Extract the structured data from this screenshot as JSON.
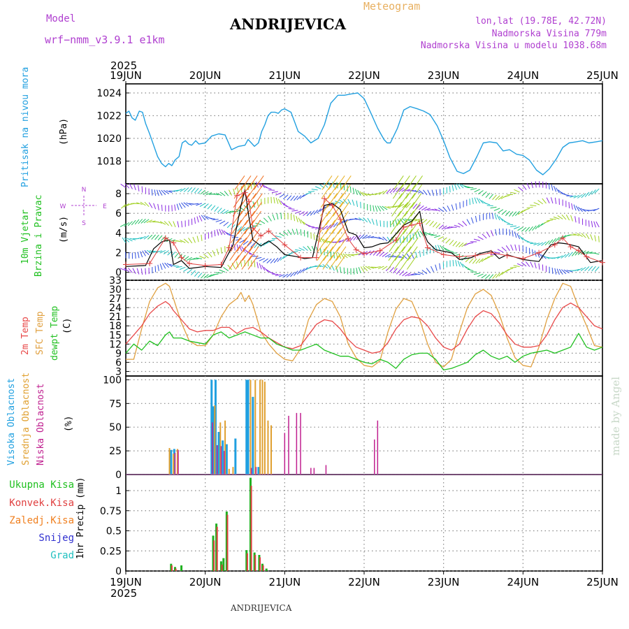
{
  "header": {
    "model_label": "Model",
    "model_name": "wrf−nmm_v3.9.1  e1km",
    "meteogram": "Meteogram",
    "station": "ANDRIJEVICA",
    "lonlat": "lon,lat (19.78E, 42.72N)",
    "altitude": "Nadmorska Visina 779m",
    "model_altitude": "Nadmorska Visina u modelu 1038.68m"
  },
  "footer": {
    "station": "ANDRIJEVICA",
    "credit": "made by Angel"
  },
  "colors": {
    "pressure": "#22a0e0",
    "wind_speed": "#000000",
    "gust": "#e04040",
    "temp2m": "#e84848",
    "sfc_temp": "#e0a040",
    "dewpt": "#20c020",
    "cloud_high": "#20a0e0",
    "cloud_mid": "#e0a030",
    "cloud_low": "#c02090",
    "rain_total": "#20b020",
    "rain_conv": "#e04040",
    "rain_frozen": "#f08020",
    "snow": "#3030d0",
    "hail": "#20c0c0"
  },
  "chart_data": [
    {
      "type": "line",
      "panel": "pressure",
      "ylabel_left": "Pritisak na nivou mora",
      "ylabel_right": "(hPa)",
      "year_label": "2025",
      "x_ticks": [
        "19JUN",
        "20JUN",
        "21JUN",
        "22JUN",
        "23JUN",
        "24JUN",
        "25JUN"
      ],
      "yticks": [
        1018,
        1020,
        1022,
        1024
      ],
      "ylim": [
        1016,
        1024.8
      ],
      "xlim": [
        0,
        6
      ],
      "grid": true,
      "series": [
        {
          "x": [
            0,
            0.04,
            0.08,
            0.12,
            0.17,
            0.21,
            0.25,
            0.3,
            0.35,
            0.4,
            0.45,
            0.5,
            0.54,
            0.58,
            0.62,
            0.67,
            0.71,
            0.75,
            0.79,
            0.83,
            0.88,
            0.92,
            1.0,
            1.08,
            1.17,
            1.25,
            1.33,
            1.42,
            1.5,
            1.54,
            1.58,
            1.62,
            1.67,
            1.71,
            1.75,
            1.79,
            1.83,
            1.88,
            1.92,
            1.96,
            2.0,
            2.08,
            2.17,
            2.25,
            2.33,
            2.42,
            2.5,
            2.58,
            2.67,
            2.75,
            2.83,
            2.92,
            3.0,
            3.08,
            3.17,
            3.25,
            3.29,
            3.33,
            3.42,
            3.5,
            3.58,
            3.67,
            3.75,
            3.83,
            3.92,
            4.0,
            4.08,
            4.17,
            4.25,
            4.33,
            4.42,
            4.5,
            4.58,
            4.67,
            4.75,
            4.83,
            4.92,
            5.0,
            5.08,
            5.17,
            5.25,
            5.33,
            5.42,
            5.5,
            5.58,
            5.67,
            5.75,
            5.83,
            5.92,
            6.0
          ],
          "values": [
            1022.2,
            1022.4,
            1021.8,
            1021.6,
            1022.4,
            1022.3,
            1021.3,
            1020.4,
            1019.4,
            1018.4,
            1017.8,
            1017.5,
            1017.8,
            1017.6,
            1018.1,
            1018.4,
            1019.6,
            1019.8,
            1019.5,
            1019.4,
            1019.8,
            1019.5,
            1019.6,
            1020.2,
            1020.4,
            1020.3,
            1019.0,
            1019.3,
            1019.4,
            1019.9,
            1019.6,
            1019.3,
            1019.6,
            1020.6,
            1021.2,
            1022.0,
            1022.3,
            1022.3,
            1022.2,
            1022.5,
            1022.6,
            1022.3,
            1020.6,
            1020.2,
            1019.6,
            1020.0,
            1021.2,
            1023.1,
            1023.8,
            1023.8,
            1023.9,
            1024.0,
            1023.5,
            1022.3,
            1020.9,
            1019.9,
            1019.6,
            1019.6,
            1020.9,
            1022.5,
            1022.8,
            1022.6,
            1022.4,
            1022.1,
            1021.1,
            1019.8,
            1018.3,
            1017.1,
            1016.9,
            1017.2,
            1018.4,
            1019.6,
            1019.7,
            1019.6,
            1018.9,
            1019.0,
            1018.6,
            1018.5,
            1018.1,
            1017.2,
            1016.8,
            1017.3,
            1018.2,
            1019.2,
            1019.6,
            1019.7,
            1019.8,
            1019.6,
            1019.7,
            1019.8
          ]
        }
      ]
    },
    {
      "type": "line",
      "panel": "wind",
      "ylabel_left": "10m Vjetar Brzina i Pravac",
      "ylabel_right": "(m/s)",
      "compass": {
        "n": "N",
        "s": "S",
        "e": "E",
        "w": "W"
      },
      "yticks": [
        0,
        2,
        4,
        6,
        8
      ],
      "ylim": [
        -0.8,
        9
      ],
      "xlim": [
        0,
        6
      ],
      "grid": true,
      "series": [
        {
          "name": "speed",
          "x": [
            0,
            0.25,
            0.35,
            0.45,
            0.55,
            0.6,
            0.7,
            0.8,
            1.0,
            1.2,
            1.35,
            1.45,
            1.5,
            1.55,
            1.6,
            1.7,
            1.8,
            1.9,
            2.0,
            2.15,
            2.25,
            2.35,
            2.5,
            2.6,
            2.7,
            2.8,
            2.9,
            3.0,
            3.1,
            3.2,
            3.3,
            3.5,
            3.6,
            3.7,
            3.75,
            3.8,
            3.9,
            4.1,
            4.2,
            4.35,
            4.45,
            4.6,
            4.7,
            4.8,
            5.0,
            5.2,
            5.35,
            5.45,
            5.55,
            5.7,
            5.85,
            6.0
          ],
          "values": [
            0.6,
            0.7,
            2.4,
            3.1,
            3.3,
            0.8,
            1.2,
            0.4,
            0.6,
            0.5,
            2.8,
            6.8,
            8.4,
            5.6,
            3.3,
            2.7,
            3.2,
            2.6,
            1.8,
            1.6,
            1.4,
            1.5,
            6.8,
            7.0,
            6.4,
            4.1,
            3.8,
            2.5,
            2.6,
            2.9,
            3.0,
            4.8,
            5.2,
            6.2,
            4.0,
            3.1,
            2.3,
            2.0,
            1.3,
            1.5,
            1.9,
            2.2,
            1.4,
            1.8,
            1.3,
            1.1,
            2.8,
            3.0,
            2.9,
            2.6,
            1.0,
            1.2
          ]
        },
        {
          "name": "gust",
          "x": [
            0,
            0.3,
            0.5,
            0.6,
            0.7,
            0.8,
            1.0,
            1.2,
            1.3,
            1.4,
            1.5,
            1.55,
            1.6,
            1.7,
            1.8,
            2.0,
            2.2,
            2.4,
            2.5,
            2.6,
            2.7,
            2.8,
            2.9,
            3.0,
            3.2,
            3.4,
            3.5,
            3.6,
            3.7,
            3.8,
            4.0,
            4.2,
            4.4,
            4.6,
            4.8,
            5.0,
            5.2,
            5.4,
            5.5,
            5.6,
            5.7,
            5.8,
            6.0
          ],
          "values": [
            0.8,
            0.9,
            3.5,
            3.0,
            1.5,
            0.9,
            0.7,
            0.8,
            2.5,
            7.8,
            8.1,
            7.2,
            4.5,
            3.7,
            4.2,
            2.8,
            1.5,
            1.5,
            7.5,
            6.8,
            5.4,
            3.4,
            2.3,
            1.9,
            2.2,
            3.3,
            4.6,
            4.8,
            5.0,
            2.5,
            1.8,
            1.6,
            1.7,
            2.0,
            1.7,
            1.4,
            2.0,
            2.8,
            3.5,
            2.6,
            2.2,
            1.6,
            1.0
          ]
        }
      ]
    },
    {
      "type": "line",
      "panel": "temperature",
      "ylabel_left": [
        "2m Temp",
        "SFC Temp",
        "dewpt Temp"
      ],
      "ylabel_right": "(C)",
      "yticks": [
        3,
        6,
        9,
        12,
        15,
        18,
        21,
        24,
        27,
        30,
        33
      ],
      "ylim": [
        1.5,
        33
      ],
      "xlim": [
        0,
        6
      ],
      "grid": true,
      "series": [
        {
          "name": "2m Temp",
          "x": [
            0,
            0.1,
            0.2,
            0.3,
            0.4,
            0.5,
            0.55,
            0.6,
            0.7,
            0.8,
            0.9,
            1.0,
            1.1,
            1.2,
            1.3,
            1.4,
            1.5,
            1.6,
            1.7,
            1.8,
            1.9,
            2.0,
            2.1,
            2.2,
            2.3,
            2.4,
            2.5,
            2.6,
            2.7,
            2.8,
            2.9,
            3.0,
            3.1,
            3.2,
            3.3,
            3.4,
            3.5,
            3.6,
            3.7,
            3.8,
            3.9,
            4.0,
            4.1,
            4.2,
            4.3,
            4.4,
            4.5,
            4.6,
            4.7,
            4.8,
            4.9,
            5.0,
            5.1,
            5.2,
            5.3,
            5.4,
            5.5,
            5.6,
            5.7,
            5.8,
            5.9,
            6.0
          ],
          "values": [
            12,
            15,
            18,
            22,
            24.5,
            26,
            25,
            23,
            20,
            17,
            16,
            16.5,
            16.5,
            17.5,
            17.5,
            15.5,
            17,
            17.5,
            16,
            14,
            12.5,
            11,
            10.5,
            11.5,
            15,
            18.5,
            20,
            19.5,
            17,
            13.5,
            11,
            10,
            9,
            9.5,
            12.5,
            17,
            20,
            21,
            20.5,
            18,
            14,
            11,
            10,
            12,
            17,
            21,
            23,
            22,
            19,
            15,
            12,
            11,
            11,
            11.5,
            15,
            20,
            24,
            25.5,
            24,
            21,
            18,
            17
          ]
        },
        {
          "name": "SFC Temp",
          "x": [
            0,
            0.1,
            0.2,
            0.3,
            0.4,
            0.5,
            0.55,
            0.6,
            0.7,
            0.8,
            0.9,
            1.0,
            1.1,
            1.2,
            1.3,
            1.4,
            1.45,
            1.5,
            1.55,
            1.6,
            1.7,
            1.8,
            1.9,
            2.0,
            2.1,
            2.2,
            2.3,
            2.4,
            2.5,
            2.6,
            2.7,
            2.8,
            2.9,
            3.0,
            3.1,
            3.2,
            3.3,
            3.4,
            3.5,
            3.6,
            3.7,
            3.8,
            3.9,
            4.0,
            4.1,
            4.2,
            4.3,
            4.4,
            4.5,
            4.6,
            4.7,
            4.8,
            4.9,
            5.0,
            5.1,
            5.2,
            5.3,
            5.4,
            5.5,
            5.6,
            5.7,
            5.8,
            5.9,
            6.0
          ],
          "values": [
            7,
            7,
            17,
            26,
            30.5,
            32,
            31,
            27,
            19,
            13,
            11.5,
            11.5,
            15,
            21,
            25,
            27,
            29,
            26,
            28,
            25,
            16,
            12,
            9,
            7,
            6.5,
            10.5,
            20,
            25,
            27,
            26,
            21,
            12,
            7.5,
            5,
            4.5,
            6.5,
            16,
            23.5,
            27,
            26,
            20,
            12,
            6,
            4.5,
            7,
            16,
            24,
            28.5,
            30,
            28,
            22,
            14,
            7.5,
            5,
            4.5,
            11,
            20,
            27,
            32,
            31,
            24,
            18,
            11.5,
            11
          ]
        },
        {
          "name": "dewpt Temp",
          "x": [
            0,
            0.1,
            0.2,
            0.3,
            0.4,
            0.5,
            0.55,
            0.6,
            0.7,
            0.8,
            0.9,
            1.0,
            1.1,
            1.2,
            1.3,
            1.4,
            1.5,
            1.6,
            1.7,
            1.8,
            1.9,
            2.0,
            2.1,
            2.2,
            2.3,
            2.4,
            2.5,
            2.6,
            2.7,
            2.8,
            2.9,
            3.0,
            3.1,
            3.2,
            3.3,
            3.4,
            3.5,
            3.6,
            3.7,
            3.8,
            3.9,
            4.0,
            4.1,
            4.2,
            4.3,
            4.4,
            4.5,
            4.6,
            4.7,
            4.8,
            4.9,
            5.0,
            5.1,
            5.2,
            5.3,
            5.4,
            5.5,
            5.6,
            5.7,
            5.8,
            5.9,
            6.0
          ],
          "values": [
            9,
            12,
            10,
            13,
            11.5,
            15,
            16,
            14,
            14,
            13,
            12.5,
            12,
            15,
            16,
            14,
            15,
            16,
            15,
            14,
            14,
            12,
            11,
            10,
            10,
            11,
            12,
            10,
            9,
            8,
            8,
            7,
            6,
            5.5,
            7,
            6,
            4,
            7,
            8.5,
            9,
            9,
            7,
            3.5,
            4,
            5,
            6,
            8.5,
            10,
            8,
            7,
            8,
            6,
            8,
            9,
            9.5,
            10,
            9,
            10,
            11,
            15.5,
            11,
            10,
            11
          ]
        }
      ]
    },
    {
      "type": "bar",
      "panel": "clouds",
      "ylabel_left": [
        "Visoka Oblacnost",
        "Srednja Oblacnost",
        "Niska Oblacnost"
      ],
      "ylabel_right": "(%)",
      "yticks": [
        0,
        25,
        50,
        75,
        100
      ],
      "ylim": [
        0,
        104
      ],
      "xlim": [
        0,
        6
      ],
      "grid": true,
      "series": [
        {
          "name": "Visoka Oblacnost",
          "x": [
            0.57,
            0.61,
            1.08,
            1.1,
            1.13,
            1.17,
            1.22,
            1.27,
            1.38,
            1.52,
            1.54,
            1.6,
            1.67
          ],
          "values": [
            26,
            27,
            100,
            72,
            100,
            45,
            36,
            32,
            38,
            100,
            100,
            82,
            8
          ]
        },
        {
          "name": "Srednja Oblacnost",
          "x": [
            0.55,
            0.6,
            0.65,
            1.12,
            1.19,
            1.25,
            1.3,
            1.35,
            1.57,
            1.63,
            1.69,
            1.72,
            1.75,
            1.79,
            1.83
          ],
          "values": [
            28,
            22,
            27,
            73,
            55,
            57,
            6,
            8,
            100,
            100,
            100,
            100,
            98,
            57,
            52
          ]
        },
        {
          "name": "Niska Oblacnost",
          "x": [
            0.62,
            0.66,
            1.09,
            1.15,
            1.2,
            1.24,
            1.58,
            1.64,
            2.0,
            2.05,
            2.15,
            2.2,
            2.33,
            2.37,
            2.52,
            3.13,
            3.17
          ],
          "values": [
            23,
            26,
            55,
            31,
            30,
            25,
            7,
            8,
            44,
            62,
            65,
            65,
            7,
            7,
            10,
            37,
            57
          ]
        }
      ]
    },
    {
      "type": "bar",
      "panel": "precip",
      "ylabel_left": "1hr Precip (mm)",
      "legend": [
        "Ukupna Kisa",
        "Konvek.Kisa",
        "Zaledj.Kisa",
        "Snijeg",
        "Grad"
      ],
      "yticks": [
        0,
        0.25,
        0.5,
        0.75,
        1
      ],
      "ylim": [
        0,
        1.2
      ],
      "xlim": [
        0,
        6
      ],
      "grid": true,
      "series": [
        {
          "name": "Ukupna Kisa",
          "x": [
            0.57,
            0.62,
            0.7,
            1.1,
            1.14,
            1.2,
            1.23,
            1.27,
            1.52,
            1.57,
            1.62,
            1.68,
            1.72,
            1.77
          ],
          "values": [
            0.09,
            0.05,
            0.07,
            0.44,
            0.59,
            0.12,
            0.16,
            0.74,
            0.26,
            1.16,
            0.23,
            0.2,
            0.09,
            0.03
          ]
        },
        {
          "name": "Konvek.Kisa",
          "x": [
            0.58,
            0.63,
            1.11,
            1.15,
            1.21,
            1.28,
            1.53,
            1.58,
            1.63,
            1.69,
            1.73
          ],
          "values": [
            0.07,
            0.03,
            0.38,
            0.55,
            0.08,
            0.7,
            0.22,
            1.06,
            0.2,
            0.17,
            0.07
          ]
        }
      ]
    }
  ]
}
